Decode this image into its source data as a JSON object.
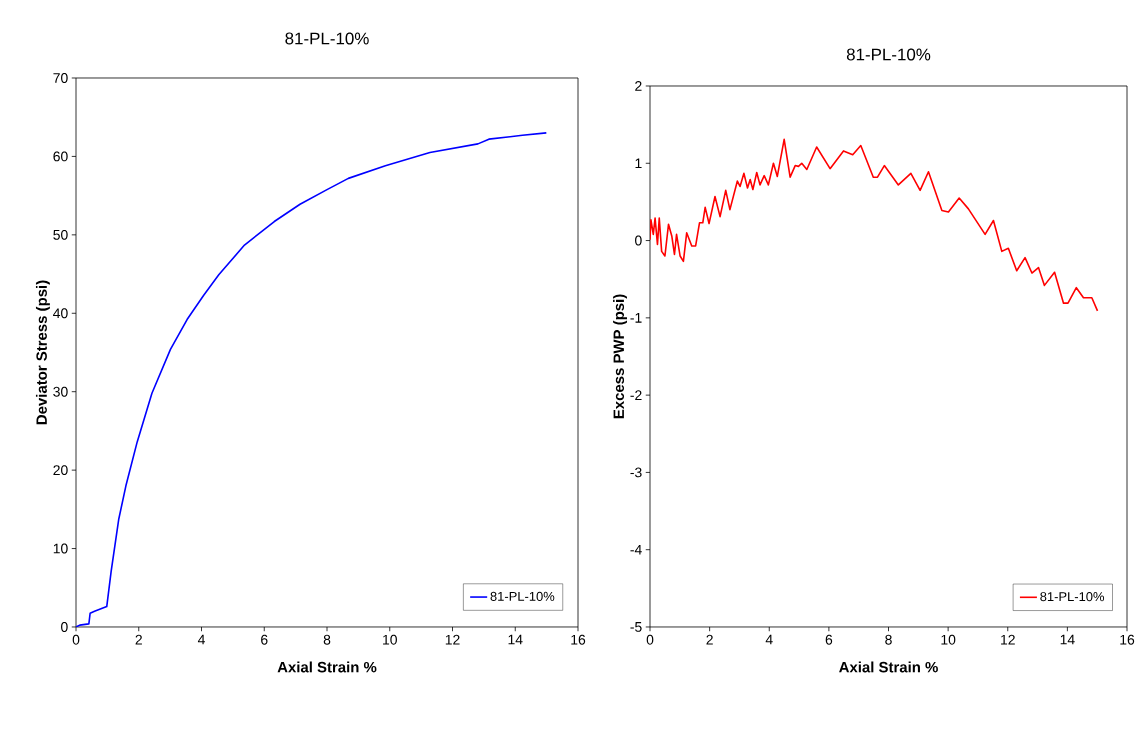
{
  "chart_data": [
    {
      "type": "line",
      "title": "81-PL-10%",
      "xlabel": "Axial Strain %",
      "ylabel": "Deviator Stress (psi)",
      "xlim": [
        0,
        16
      ],
      "ylim": [
        0,
        70
      ],
      "xticks": [
        0,
        2,
        4,
        6,
        8,
        10,
        12,
        14,
        16
      ],
      "yticks": [
        0,
        10,
        20,
        30,
        40,
        50,
        60,
        70
      ],
      "grid": false,
      "legend": "bottom right",
      "marker": "none",
      "line_style": "solid",
      "series": [
        {
          "name": "81-PL-10%",
          "color": "#0000ff",
          "x": [
            0,
            0.12,
            0.41,
            0.45,
            0.59,
            0.98,
            1.12,
            1.36,
            1.59,
            1.95,
            2.42,
            3.01,
            3.54,
            4.07,
            4.55,
            5.37,
            6.32,
            7.14,
            7.97,
            8.68,
            9.86,
            11.28,
            12.81,
            13.16,
            14.23,
            14.99
          ],
          "values": [
            0,
            0.24,
            0.4,
            1.75,
            2.0,
            2.6,
            7.1,
            13.7,
            18,
            23.6,
            29.8,
            35.4,
            39.2,
            42.3,
            44.9,
            48.7,
            51.7,
            53.9,
            55.7,
            57.2,
            58.8,
            60.5,
            61.6,
            62.2,
            62.7,
            63.0
          ]
        }
      ]
    },
    {
      "type": "line",
      "title": "81-PL-10%",
      "xlabel": "Axial Strain %",
      "ylabel": "Excess PWP (psi)",
      "xlim": [
        0,
        16
      ],
      "ylim": [
        -5,
        2
      ],
      "xticks": [
        0,
        2,
        4,
        6,
        8,
        10,
        12,
        14,
        16
      ],
      "yticks": [
        -5,
        -4,
        -3,
        -2,
        -1,
        0,
        1,
        2
      ],
      "grid": false,
      "legend": "bottom right",
      "marker": "none",
      "line_style": "solid",
      "series": [
        {
          "name": "81-PL-10%",
          "color": "#ff0000",
          "x": [
            0,
            0.03,
            0.11,
            0.17,
            0.25,
            0.31,
            0.39,
            0.5,
            0.62,
            0.73,
            0.82,
            0.89,
            1.01,
            1.12,
            1.23,
            1.4,
            1.53,
            1.66,
            1.77,
            1.85,
            1.98,
            2.18,
            2.35,
            2.54,
            2.68,
            2.93,
            3.02,
            3.15,
            3.27,
            3.36,
            3.45,
            3.58,
            3.69,
            3.83,
            3.97,
            4.14,
            4.27,
            4.5,
            4.7,
            4.87,
            4.98,
            5.09,
            5.26,
            5.59,
            6.04,
            6.49,
            6.8,
            7.07,
            7.49,
            7.63,
            7.86,
            8.33,
            8.75,
            9.06,
            9.34,
            9.79,
            10.01,
            10.37,
            10.68,
            11.24,
            11.52,
            11.8,
            12.02,
            12.3,
            12.58,
            12.81,
            13.03,
            13.23,
            13.57,
            13.87,
            14.02,
            14.3,
            14.54,
            14.82,
            15.01
          ],
          "values": [
            0.01,
            0.27,
            0.08,
            0.29,
            -0.05,
            0.29,
            -0.14,
            -0.2,
            0.21,
            0.06,
            -0.18,
            0.08,
            -0.2,
            -0.27,
            0.1,
            -0.07,
            -0.07,
            0.23,
            0.23,
            0.43,
            0.22,
            0.57,
            0.31,
            0.65,
            0.4,
            0.77,
            0.7,
            0.87,
            0.68,
            0.79,
            0.66,
            0.88,
            0.72,
            0.84,
            0.72,
            1.0,
            0.83,
            1.31,
            0.82,
            0.97,
            0.96,
            1.0,
            0.92,
            1.21,
            0.93,
            1.16,
            1.11,
            1.23,
            0.82,
            0.82,
            0.97,
            0.72,
            0.87,
            0.65,
            0.89,
            0.39,
            0.37,
            0.55,
            0.41,
            0.08,
            0.26,
            -0.14,
            -0.1,
            -0.39,
            -0.22,
            -0.42,
            -0.35,
            -0.58,
            -0.41,
            -0.81,
            -0.81,
            -0.61,
            -0.74,
            -0.74,
            -0.91
          ]
        }
      ]
    }
  ]
}
